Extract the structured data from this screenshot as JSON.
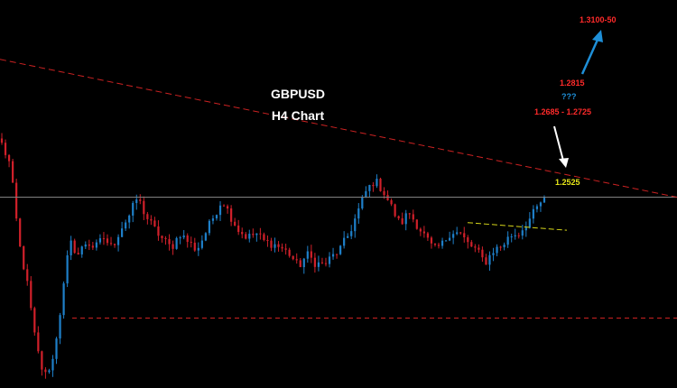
{
  "chart_data": {
    "type": "candlestick",
    "title": "GBPUSD",
    "subtitle": "H4 Chart",
    "ylim": [
      1.2215,
      1.313
    ],
    "colors": {
      "background": "#000000",
      "bull": "#1e7fc8",
      "bear": "#d0202a",
      "trendline": "#cc2222",
      "horizontal_line": "#808080",
      "support_dashed": "#cc2222",
      "wedge_line": "#d6d61a",
      "arrow_down": "#ffffff",
      "arrow_up": "#1e8fd8"
    },
    "closes_approx": [
      1.279,
      1.274,
      1.256,
      1.246,
      1.232,
      1.224,
      1.228,
      1.241,
      1.256,
      1.253,
      1.256,
      1.2545,
      1.257,
      1.2545,
      1.259,
      1.262,
      1.2665,
      1.262,
      1.259,
      1.2565,
      1.2545,
      1.258,
      1.256,
      1.254,
      1.258,
      1.262,
      1.266,
      1.262,
      1.2585,
      1.257,
      1.258,
      1.256,
      1.2555,
      1.2545,
      1.253,
      1.25,
      1.253,
      1.251,
      1.2505,
      1.2525,
      1.2545,
      1.258,
      1.263,
      1.268,
      1.2705,
      1.268,
      1.264,
      1.26,
      1.263,
      1.26,
      1.257,
      1.254,
      1.2555,
      1.2585,
      1.258,
      1.2555,
      1.254,
      1.251,
      1.254,
      1.255,
      1.2575,
      1.258,
      1.2605,
      1.2635,
      1.2665
    ],
    "horizontal_level": 1.2665,
    "support_level": 1.238,
    "trendline": {
      "start": 1.299,
      "end": 1.2665
    },
    "wedge_line": {
      "start": 1.2605,
      "end": 1.2587
    },
    "annotations": [
      {
        "text": "1.3100-50",
        "color": "#ff2a2a"
      },
      {
        "text": "1.2815",
        "color": "#ff2a2a"
      },
      {
        "text": "???",
        "color": "#1e8fd8"
      },
      {
        "text": "1.2685 - 1.2725",
        "color": "#ff2a2a"
      },
      {
        "text": "1.2525",
        "color": "#e6e619"
      }
    ]
  }
}
